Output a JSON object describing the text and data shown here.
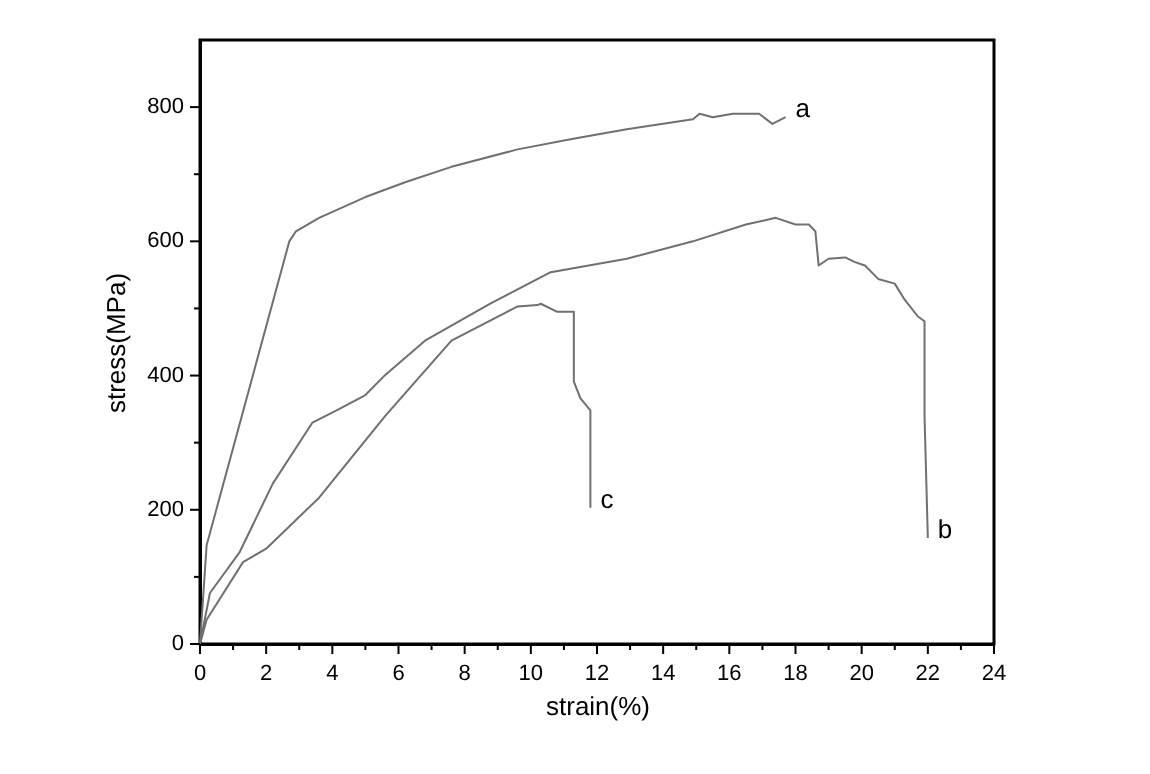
{
  "chart_data": {
    "type": "line",
    "xlabel": "strain(%)",
    "ylabel": "stress(MPa)",
    "xlim": [
      0,
      24
    ],
    "ylim": [
      0,
      900
    ],
    "xticks": [
      0,
      {
        "value": 1,
        "label": null
      },
      2,
      {
        "value": 3,
        "label": null
      },
      4,
      {
        "value": 5,
        "label": null
      },
      6,
      {
        "value": 7,
        "label": null
      },
      8,
      {
        "value": 9,
        "label": null
      },
      10,
      {
        "value": 11,
        "label": null
      },
      12,
      {
        "value": 13,
        "label": null
      },
      14,
      {
        "value": 15,
        "label": null
      },
      16,
      {
        "value": 17,
        "label": null
      },
      18,
      {
        "value": 19,
        "label": null
      },
      20,
      {
        "value": 21,
        "label": null
      },
      22,
      {
        "value": 23,
        "label": null
      },
      24
    ],
    "yticks": [
      0,
      {
        "value": 100,
        "label": null
      },
      200,
      {
        "value": 300,
        "label": null
      },
      400,
      {
        "value": 500,
        "label": null
      },
      600,
      {
        "value": 700,
        "label": null
      },
      800
    ],
    "grid": false,
    "legend": false,
    "marker": "none",
    "line_style": "solid",
    "series": [
      {
        "name": "a",
        "color": "#707070",
        "x": [
          0,
          0.2,
          2.7,
          2.9,
          3.6,
          5,
          6.2,
          7.6,
          9.6,
          11.2,
          12.9,
          14.9,
          15.1,
          15.5,
          16.1,
          16.9,
          17.3,
          17.7
        ],
        "values": [
          0,
          147,
          600,
          615,
          635,
          666,
          688,
          711,
          737,
          752,
          767,
          782,
          790,
          785,
          790,
          790,
          775,
          785
        ]
      },
      {
        "name": "b",
        "color": "#707070",
        "x": [
          0,
          0.3,
          1.2,
          2.2,
          3.4,
          4.2,
          5,
          5.6,
          6.8,
          8.8,
          10.6,
          12.9,
          14.9,
          16.5,
          17.4,
          18.0,
          18.4,
          18.6,
          18.7,
          19.0,
          19.5,
          19.8,
          20.1,
          20.5,
          21.0,
          21.3,
          21.7,
          21.9,
          21.9,
          22.0
        ],
        "values": [
          0,
          76,
          137,
          239,
          330,
          350,
          371,
          401,
          452,
          508,
          554,
          574,
          600,
          625,
          635,
          625,
          625,
          615,
          564,
          574,
          576,
          569,
          564,
          544,
          537,
          513,
          488,
          481,
          340,
          158
        ]
      },
      {
        "name": "c",
        "color": "#707070",
        "x": [
          0,
          0.2,
          1.3,
          2,
          3.6,
          5.6,
          7.6,
          9.6,
          10.2,
          10.3,
          10.8,
          11.3,
          11.3,
          11.5,
          11.8,
          11.8
        ],
        "values": [
          0,
          36,
          122,
          142,
          218,
          340,
          452,
          503,
          505,
          507,
          495,
          495,
          391,
          366,
          348,
          203
        ]
      }
    ]
  }
}
